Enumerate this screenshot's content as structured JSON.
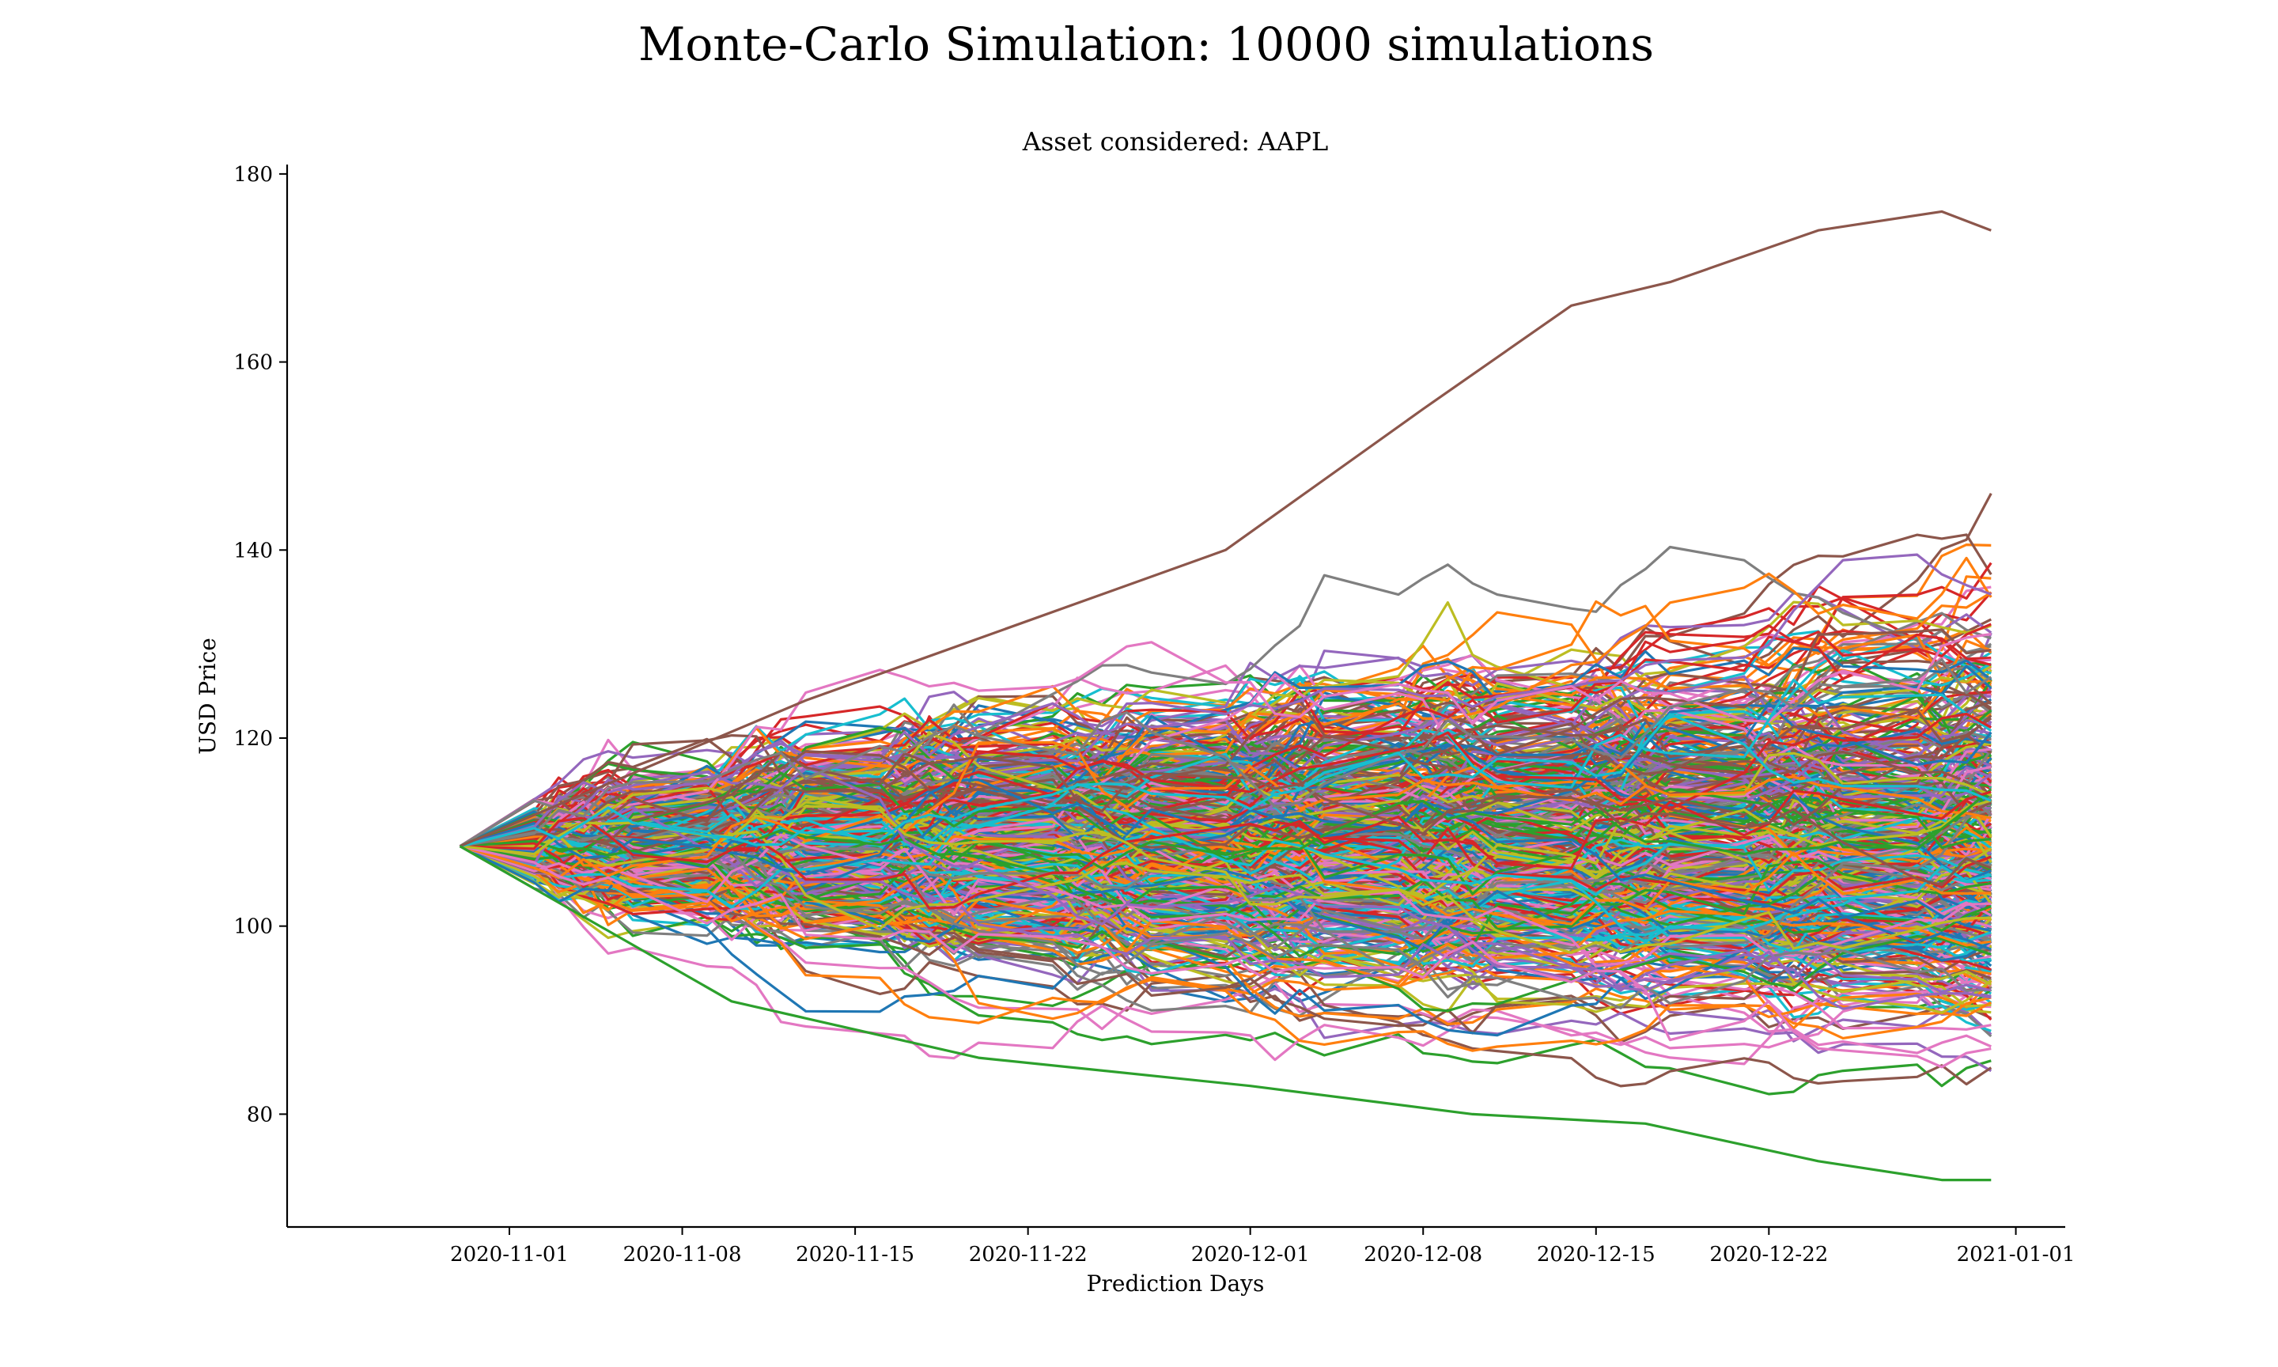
{
  "chart_data": {
    "type": "line",
    "title": "Monte-Carlo Simulation: 10000 simulations",
    "subtitle": "Asset considered: AAPL",
    "xlabel": "Prediction Days",
    "ylabel": "USD Price",
    "x_start": "2020-10-30",
    "x_end": "2020-12-31",
    "xlim": [
      "2020-10-23",
      "2021-01-03"
    ],
    "ylim": [
      68,
      181
    ],
    "x_ticks": [
      "2020-11-01",
      "2020-11-08",
      "2020-11-15",
      "2020-11-22",
      "2020-12-01",
      "2020-12-08",
      "2020-12-15",
      "2020-12-22",
      "2021-01-01"
    ],
    "y_ticks": [
      80,
      100,
      120,
      140,
      160,
      180
    ],
    "start_value": 108.5,
    "n_simulations": 10000,
    "grid": false,
    "legend": "none",
    "colors": [
      "#1f77b4",
      "#ff7f0e",
      "#2ca02c",
      "#d62728",
      "#9467bd",
      "#8c564b",
      "#e377c2",
      "#7f7f7f",
      "#bcbd22",
      "#17becf"
    ],
    "envelope": {
      "max_end": 174,
      "min_end": 73,
      "notable_paths": [
        {
          "name": "",
          "end": 174,
          "dates": [
            "2020-10-30",
            "2020-11-13",
            "2020-11-30",
            "2020-12-08",
            "2020-12-14",
            "2020-12-18",
            "2020-12-24",
            "2020-12-29",
            "2020-12-31"
          ],
          "values": [
            108.5,
            124,
            140,
            155,
            166,
            168.5,
            174,
            176,
            174
          ]
        },
        {
          "name": "",
          "end": 73,
          "dates": [
            "2020-10-30",
            "2020-11-10",
            "2020-11-20",
            "2020-12-01",
            "2020-12-10",
            "2020-12-17",
            "2020-12-24",
            "2020-12-29",
            "2020-12-31"
          ],
          "values": [
            108.5,
            92,
            86,
            83,
            80,
            79,
            75,
            73,
            73
          ]
        }
      ]
    }
  }
}
